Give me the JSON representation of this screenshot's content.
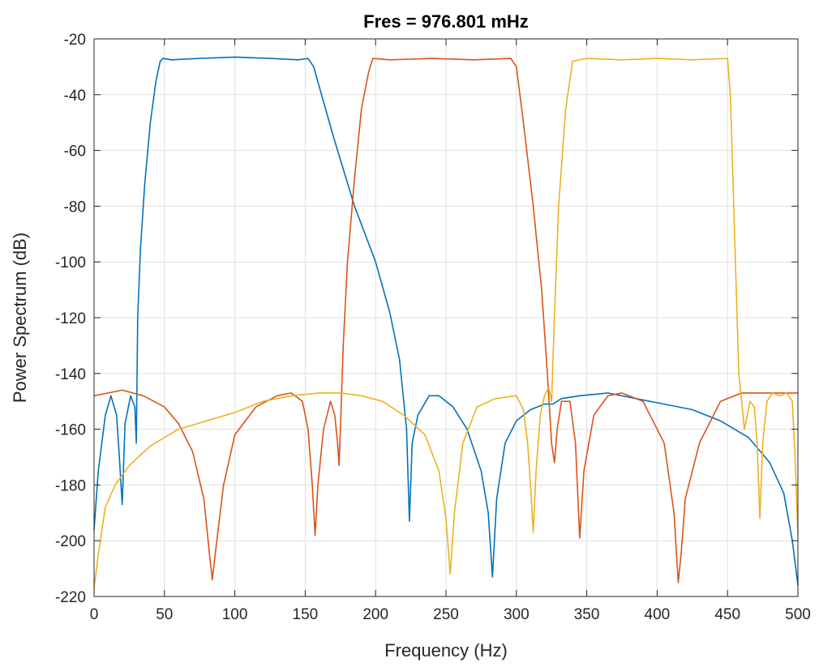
{
  "chart_data": {
    "type": "line",
    "title": "Fres = 976.801 mHz",
    "xlabel": "Frequency (Hz)",
    "ylabel": "Power Spectrum (dB)",
    "xlim": [
      0,
      500
    ],
    "ylim": [
      -220,
      -20
    ],
    "xticks": [
      "0",
      "50",
      "100",
      "150",
      "200",
      "250",
      "300",
      "350",
      "400",
      "450",
      "500"
    ],
    "yticks": [
      "-20",
      "-40",
      "-60",
      "-80",
      "-100",
      "-120",
      "-140",
      "-160",
      "-180",
      "-200",
      "-220"
    ],
    "grid": true,
    "series": [
      {
        "color": "#0072BD",
        "x": [
          0,
          3,
          8,
          12,
          16,
          18,
          20,
          22,
          26,
          29,
          30,
          31,
          33,
          36,
          40,
          44,
          47,
          49,
          55,
          75,
          100,
          125,
          145,
          152,
          156,
          170,
          185,
          200,
          210,
          217,
          222,
          224,
          226,
          230,
          238,
          245,
          255,
          265,
          275,
          280,
          283,
          286,
          292,
          300,
          310,
          320,
          326,
          332,
          345,
          365,
          385,
          405,
          425,
          445,
          465,
          480,
          490,
          496,
          500
        ],
        "y": [
          -196,
          -175,
          -155,
          -148,
          -155,
          -170,
          -187,
          -158,
          -148,
          -152,
          -165,
          -120,
          -95,
          -72,
          -50,
          -35,
          -28,
          -27,
          -27.5,
          -27,
          -26.5,
          -27,
          -27.5,
          -27,
          -30,
          -55,
          -80,
          -100,
          -118,
          -135,
          -160,
          -193,
          -165,
          -155,
          -148,
          -148,
          -152,
          -160,
          -175,
          -190,
          -213,
          -185,
          -165,
          -157,
          -153,
          -151,
          -151,
          -149,
          -148,
          -147,
          -149,
          -151,
          -153,
          -157,
          -163,
          -172,
          -183,
          -200,
          -216
        ]
      },
      {
        "color": "#D95319",
        "x": [
          0,
          10,
          20,
          35,
          50,
          60,
          70,
          78,
          82,
          84,
          86,
          92,
          100,
          115,
          130,
          140,
          148,
          152,
          155,
          157,
          159,
          163,
          168,
          171,
          173,
          174,
          175,
          177,
          180,
          185,
          190,
          195,
          198,
          210,
          240,
          270,
          296,
          300,
          305,
          312,
          318,
          322,
          325,
          327,
          329,
          332,
          338,
          342,
          345,
          348,
          355,
          365,
          375,
          390,
          405,
          412,
          415,
          417,
          420,
          430,
          445,
          460,
          480,
          500
        ],
        "y": [
          -148,
          -147,
          -146,
          -148,
          -152,
          -158,
          -168,
          -185,
          -205,
          -214,
          -205,
          -180,
          -162,
          -152,
          -148,
          -147,
          -150,
          -160,
          -180,
          -198,
          -180,
          -160,
          -150,
          -155,
          -165,
          -173,
          -160,
          -130,
          -100,
          -70,
          -45,
          -32,
          -27,
          -27.5,
          -27,
          -27.5,
          -27,
          -30,
          -50,
          -80,
          -110,
          -140,
          -165,
          -172,
          -160,
          -150,
          -150,
          -165,
          -199,
          -175,
          -155,
          -148,
          -147,
          -150,
          -165,
          -190,
          -215,
          -205,
          -185,
          -165,
          -150,
          -147,
          -147,
          -147
        ]
      },
      {
        "color": "#EDB120",
        "x": [
          0,
          3,
          8,
          15,
          25,
          40,
          60,
          80,
          100,
          120,
          140,
          160,
          175,
          190,
          205,
          220,
          235,
          245,
          250,
          253,
          256,
          262,
          272,
          285,
          300,
          305,
          308,
          310,
          312,
          314,
          317,
          320,
          323,
          325,
          327,
          330,
          335,
          340,
          350,
          375,
          400,
          425,
          450,
          452,
          455,
          458,
          462,
          466,
          469,
          471,
          473,
          475,
          478,
          482,
          487,
          492,
          496,
          498,
          500
        ],
        "y": [
          -217,
          -205,
          -188,
          -180,
          -173,
          -166,
          -160,
          -157,
          -154,
          -150,
          -148,
          -147,
          -147,
          -148,
          -150,
          -155,
          -162,
          -175,
          -192,
          -212,
          -190,
          -165,
          -152,
          -149,
          -148,
          -153,
          -165,
          -180,
          -197,
          -175,
          -155,
          -148,
          -145,
          -150,
          -120,
          -80,
          -45,
          -28,
          -27,
          -27.5,
          -27,
          -27.5,
          -27,
          -40,
          -90,
          -140,
          -160,
          -150,
          -152,
          -165,
          -192,
          -165,
          -150,
          -147,
          -148,
          -147,
          -150,
          -170,
          -198
        ]
      }
    ]
  }
}
